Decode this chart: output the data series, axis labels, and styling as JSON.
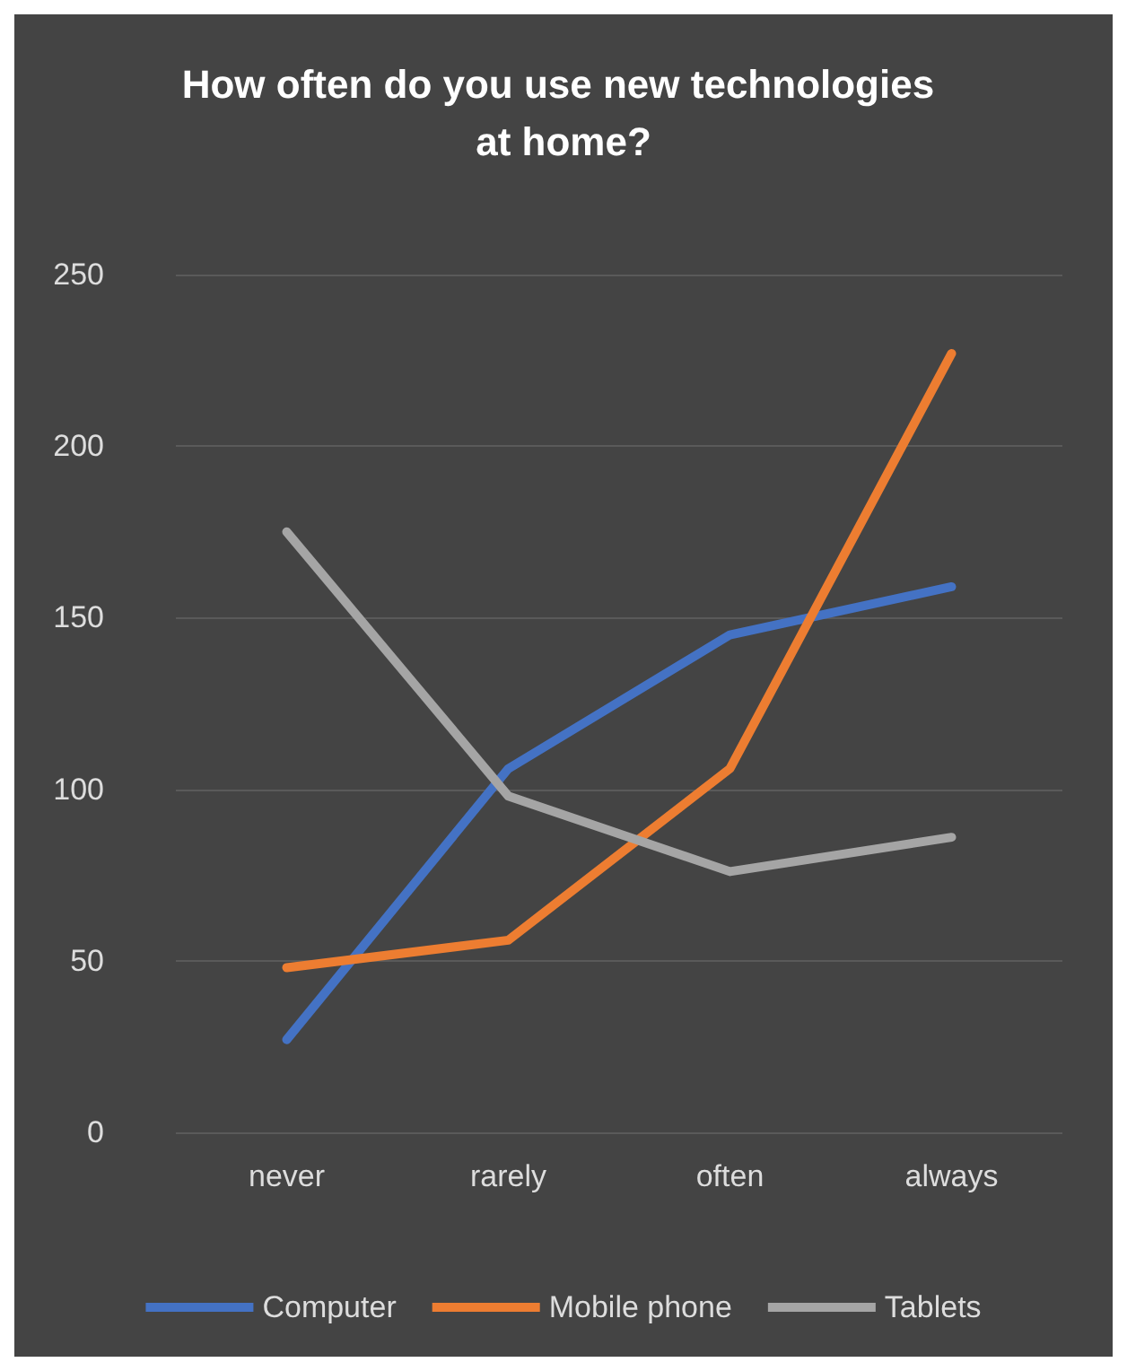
{
  "chart_data": {
    "type": "line",
    "title": "How often do you use new technologies at home?",
    "categories": [
      "never",
      "rarely",
      "often",
      "always"
    ],
    "series": [
      {
        "name": "Computer",
        "color": "#4472c4",
        "values": [
          27,
          106,
          145,
          159
        ]
      },
      {
        "name": "Mobile phone",
        "color": "#ed7d31",
        "values": [
          48,
          56,
          106,
          227
        ]
      },
      {
        "name": "Tablets",
        "color": "#a5a5a5",
        "values": [
          175,
          98,
          76,
          86
        ]
      }
    ],
    "ylim": [
      0,
      250
    ],
    "yticks": [
      0,
      50,
      100,
      150,
      200,
      250
    ],
    "grid": "y",
    "legend": "bottom",
    "marker": "none",
    "line_style": "solid"
  }
}
